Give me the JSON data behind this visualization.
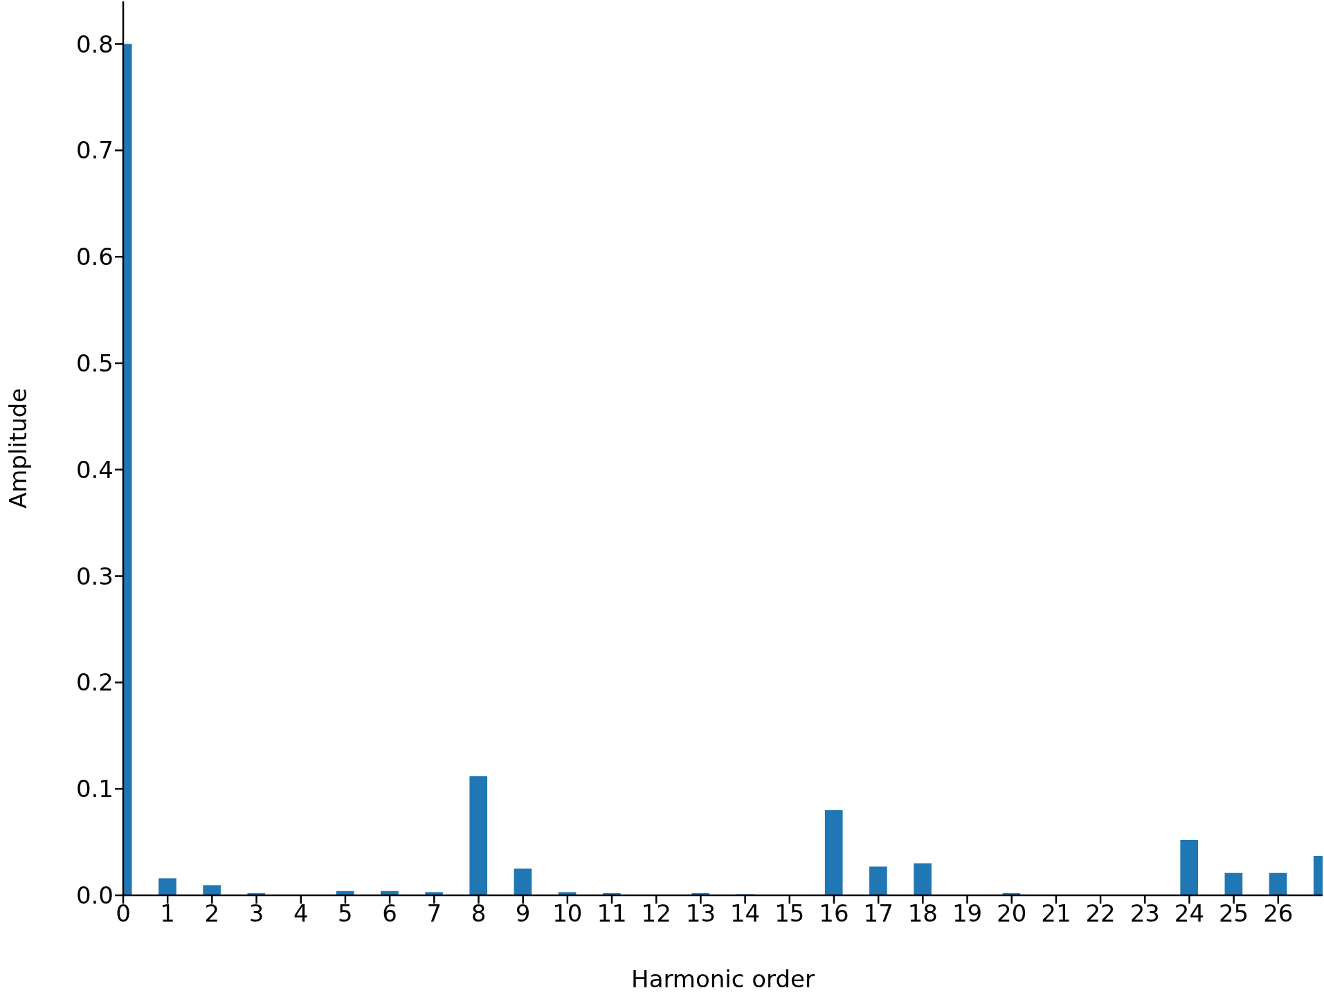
{
  "chart_data": {
    "type": "bar",
    "xlabel": "Harmonic order",
    "ylabel": "Amplitude",
    "x": [
      0,
      1,
      2,
      3,
      4,
      5,
      6,
      7,
      8,
      9,
      10,
      11,
      12,
      13,
      14,
      15,
      16,
      17,
      18,
      19,
      20,
      21,
      22,
      23,
      24,
      25,
      26,
      27
    ],
    "values": [
      0.8,
      0.016,
      0.0095,
      0.002,
      0,
      0.004,
      0.004,
      0.003,
      0.112,
      0.025,
      0.003,
      0.002,
      0,
      0.002,
      0.001,
      0,
      0.08,
      0.027,
      0.03,
      0,
      0.002,
      0,
      0,
      0,
      0.052,
      0.021,
      0.021,
      0.037
    ],
    "color": "#1f77b4",
    "xlim": [
      0,
      27
    ],
    "xticks": [
      0,
      1,
      2,
      3,
      4,
      5,
      6,
      7,
      8,
      9,
      10,
      11,
      12,
      13,
      14,
      15,
      16,
      17,
      18,
      19,
      20,
      21,
      22,
      23,
      24,
      25,
      26
    ],
    "ylim": [
      0,
      0.84
    ],
    "yticks": [
      {
        "value": 0,
        "label": "0.0"
      },
      0.1,
      0.2,
      0.3,
      0.4,
      0.5,
      0.6,
      0.7,
      0.8
    ],
    "grid": false,
    "legend": false
  }
}
